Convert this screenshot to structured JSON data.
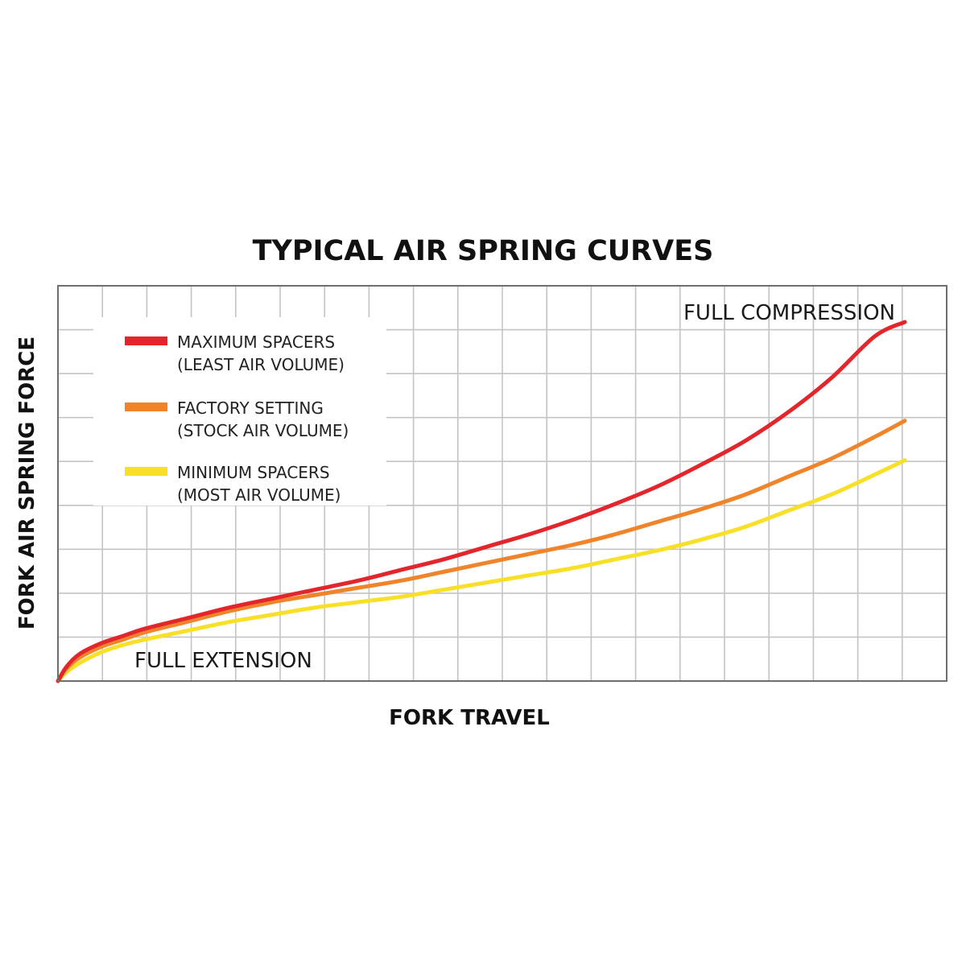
{
  "chart_data": {
    "type": "line",
    "title": "TYPICAL AIR SPRING CURVES",
    "xlabel": "FORK TRAVEL",
    "ylabel": "FORK AIR SPRING FORCE",
    "xlim": [
      0,
      100
    ],
    "ylim": [
      0,
      100
    ],
    "grid": true,
    "legend_position": "top-left",
    "annotations": [
      {
        "id": "full_compression",
        "text": "FULL COMPRESSION"
      },
      {
        "id": "full_extension",
        "text": "FULL EXTENSION"
      }
    ],
    "series": [
      {
        "name": "MAXIMUM SPACERS",
        "note": "(LEAST AIR VOLUME)",
        "color": "#e3262c",
        "x": [
          0,
          1,
          2.5,
          5,
          7.5,
          10,
          15,
          20,
          25,
          30,
          35,
          40,
          45,
          50,
          55,
          60,
          65,
          70,
          75,
          80,
          85,
          90,
          95,
          98.5
        ],
        "y": [
          0,
          4,
          7.5,
          10.5,
          12.5,
          14.5,
          17.5,
          20.5,
          23,
          25.5,
          28,
          31,
          34,
          37.5,
          41,
          45,
          49.5,
          54.5,
          60.5,
          67,
          75,
          84.5,
          96,
          100
        ]
      },
      {
        "name": "FACTORY SETTING",
        "note": "(STOCK AIR VOLUME)",
        "color": "#f0842a",
        "x": [
          0,
          1,
          2.5,
          5,
          7.5,
          10,
          15,
          20,
          25,
          30,
          35,
          40,
          45,
          50,
          55,
          60,
          65,
          70,
          75,
          80,
          85,
          90,
          95,
          98.5
        ],
        "y": [
          0,
          3.5,
          6.5,
          9.5,
          11.5,
          13.5,
          16.5,
          19.5,
          22,
          24,
          26,
          28,
          30.5,
          33,
          35.5,
          38,
          41,
          44.5,
          48,
          52,
          57,
          62,
          68,
          72.5
        ]
      },
      {
        "name": "MINIMUM SPACERS",
        "note": "(MOST AIR VOLUME)",
        "color": "#f8e029",
        "x": [
          0,
          1,
          2.5,
          5,
          7.5,
          10,
          15,
          20,
          25,
          30,
          35,
          40,
          45,
          50,
          55,
          60,
          65,
          70,
          75,
          80,
          85,
          90,
          95,
          98.5
        ],
        "y": [
          0,
          2.5,
          5,
          8,
          10,
          11.5,
          14,
          16.5,
          18.5,
          20.5,
          22,
          23.5,
          25.5,
          27.5,
          29.5,
          31.5,
          34,
          36.5,
          39.5,
          43,
          47.5,
          52,
          57.5,
          61.5
        ]
      }
    ]
  }
}
